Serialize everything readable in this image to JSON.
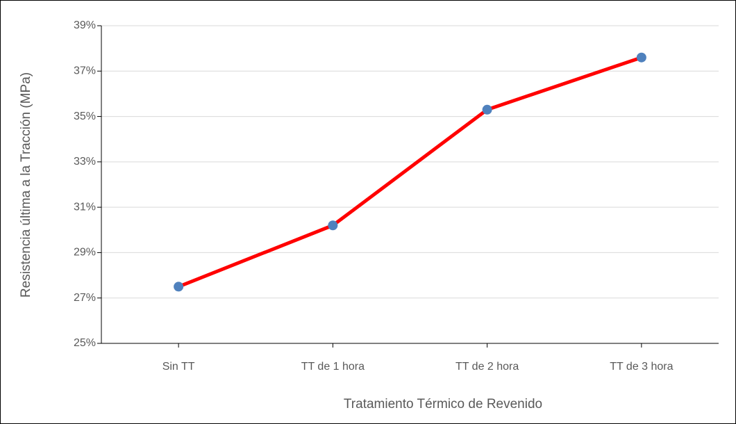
{
  "chart_data": {
    "type": "line",
    "x_label": "Tratamiento Térmico de Revenido",
    "y_label": "Resistencia última a la Tracción (MPa)",
    "categories": [
      "Sin TT",
      "TT de 1 hora",
      "TT de 2 hora",
      "TT de 3 hora"
    ],
    "values": [
      27.5,
      30.2,
      35.3,
      37.6
    ],
    "color": "#ff0000",
    "marker_color": "#4f81bd",
    "ylim": [
      25,
      39
    ],
    "yticks": [
      {
        "value": 25,
        "label": "25%"
      },
      {
        "value": 27,
        "label": "27%"
      },
      {
        "value": 29,
        "label": "29%"
      },
      {
        "value": 31,
        "label": "31%"
      },
      {
        "value": 33,
        "label": "33%"
      },
      {
        "value": 35,
        "label": "35%"
      },
      {
        "value": 37,
        "label": "37%"
      },
      {
        "value": 39,
        "label": "39%"
      }
    ],
    "grid": true
  }
}
